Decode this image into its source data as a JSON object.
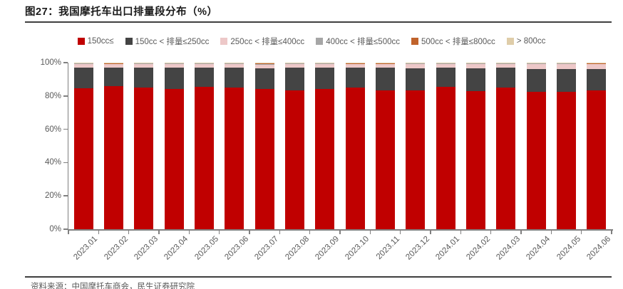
{
  "header": {
    "title": "图27：我国摩托车出口排量段分布（%）"
  },
  "footer": {
    "source": "资料来源：中国摩托车商会，民生证券研究院"
  },
  "colors": {
    "accent_red": "#C00000",
    "dark_gray": "#444444",
    "pink": "#EDC8C8",
    "gray": "#A6A6A6",
    "orange": "#C0632C",
    "tan": "#DFCDA9",
    "axis": "#808080",
    "text_gray": "#595959",
    "rule_dark": "#3f3f3f"
  },
  "chart_data": {
    "type": "bar",
    "subtype": "stacked-100",
    "title": "图27：我国摩托车出口排量段分布（%）",
    "legend_position": "top",
    "grid": false,
    "xlabel": "",
    "ylabel": "",
    "ylim": [
      0,
      100
    ],
    "y_ticks": [
      "0%",
      "20%",
      "40%",
      "60%",
      "80%",
      "100%"
    ],
    "categories": [
      "2023.01",
      "2023.02",
      "2023.03",
      "2023.04",
      "2023.05",
      "2023.06",
      "2023.07",
      "2023.08",
      "2023.09",
      "2023.10",
      "2023.11",
      "2023.12",
      "2024.01",
      "2024.02",
      "2024.03",
      "2024.04",
      "2024.05",
      "2024.06"
    ],
    "series": [
      {
        "name": "150cc≤",
        "color": "#C00000",
        "values": [
          84.5,
          85.9,
          84.9,
          84.1,
          85.6,
          85.2,
          84.3,
          83.2,
          84.3,
          84.9,
          83.5,
          83.2,
          85.3,
          82.8,
          85.2,
          82.5,
          82.4,
          83.2
        ]
      },
      {
        "name": "150cc < 排量≤250cc",
        "color": "#444444",
        "values": [
          12.7,
          11.3,
          12.1,
          12.9,
          11.6,
          12.0,
          12.3,
          13.6,
          12.6,
          12.0,
          13.3,
          13.4,
          11.6,
          13.7,
          11.7,
          13.8,
          13.7,
          12.8
        ]
      },
      {
        "name": "250cc < 排量≤400cc",
        "color": "#EDC8C8",
        "values": [
          2.0,
          1.8,
          2.2,
          2.3,
          2.1,
          2.1,
          2.4,
          2.5,
          2.4,
          2.2,
          2.3,
          2.5,
          2.3,
          2.6,
          2.3,
          3.0,
          3.2,
          3.0
        ]
      },
      {
        "name": "400cc < 排量≤500cc",
        "color": "#A6A6A6",
        "values": [
          0.2,
          0.4,
          0.2,
          0.2,
          0.2,
          0.4,
          0.2,
          0.3,
          0.3,
          0.3,
          0.3,
          0.3,
          0.2,
          0.3,
          0.2,
          0.3,
          0.3,
          0.4
        ]
      },
      {
        "name": "500cc < 排量≤800cc",
        "color": "#C0632C",
        "values": [
          0.5,
          0.2,
          0.5,
          0.3,
          0.4,
          0.2,
          0.7,
          0.3,
          0.2,
          0.2,
          0.2,
          0.5,
          0.5,
          0.5,
          0.5,
          0.2,
          0.2,
          0.3
        ]
      },
      {
        "name": "> 800cc",
        "color": "#DFCDA9",
        "values": [
          0.1,
          0.4,
          0.1,
          0.2,
          0.1,
          0.1,
          0.1,
          0.1,
          0.2,
          0.4,
          0.4,
          0.1,
          0.1,
          0.1,
          0.1,
          0.2,
          0.2,
          0.3
        ]
      }
    ]
  }
}
